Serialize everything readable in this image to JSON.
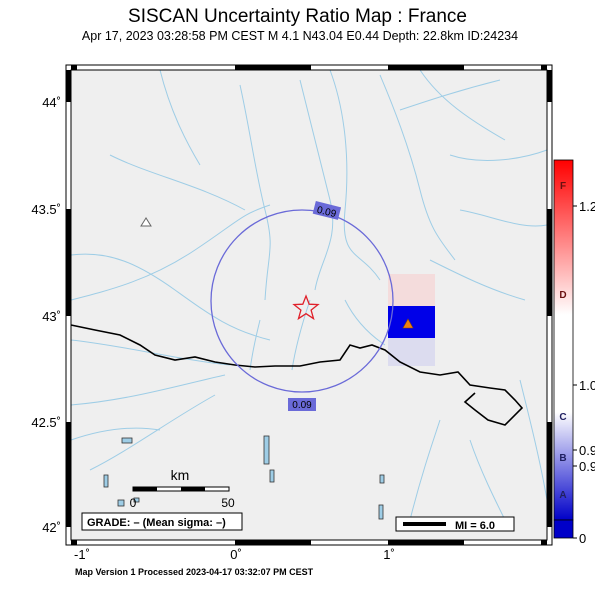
{
  "header": {
    "title": "SISCAN Uncertainty Ratio Map : France",
    "subtitle": "Apr 17, 2023 03:28:58 PM CEST   M 4.1   N43.04 E0.44   Depth: 22.8km   ID:24234"
  },
  "footer": {
    "text": "Map Version 1 Processed 2023-04-17 03:32:07 PM CEST"
  },
  "map": {
    "lat_ticks": [
      "44˚",
      "43.5˚",
      "43˚",
      "42.5˚",
      "42˚"
    ],
    "lon_ticks": [
      "-1˚",
      "0˚",
      "1˚"
    ],
    "contour_label_top": "0.09",
    "contour_label_bottom": "0.09",
    "scale_bar": {
      "unit": "km",
      "start": "0",
      "end": "50"
    },
    "grade_box": "GRADE: – (Mean sigma: –)",
    "mi_legend": "MI = 6.0",
    "epicenter": {
      "lat": 43.04,
      "lon": 0.44
    }
  },
  "colorbar": {
    "right_labels": [
      "1.2",
      "1.0",
      "0.9",
      "0.9",
      "0"
    ],
    "grade_letters": [
      "F",
      "D",
      "C",
      "B",
      "A"
    ],
    "colors": {
      "high": "#ff0000",
      "mid": "#ffffff",
      "low": "#0000cc"
    }
  },
  "colors": {
    "land": "#efefef",
    "river": "#9ecde6",
    "contour": "#6a6ad8",
    "star": "#e0202a"
  }
}
